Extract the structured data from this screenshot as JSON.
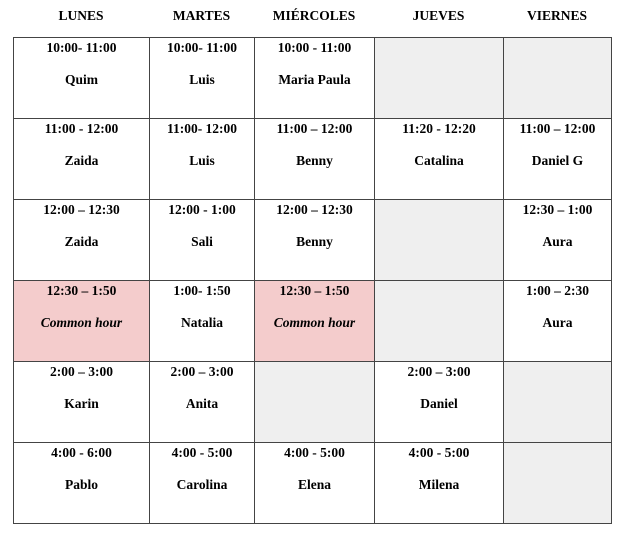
{
  "days": [
    "LUNES",
    "MARTES",
    "MIÉRCOLES",
    "JUEVES",
    "VIERNES"
  ],
  "colors": {
    "common_hour": "#f4cccc",
    "empty": "#efefef",
    "border": "#444444"
  },
  "rows": [
    [
      {
        "time": "10:00- 11:00",
        "name": "Quim"
      },
      {
        "time": "10:00- 11:00",
        "name": "Luis"
      },
      {
        "time": "10:00 - 11:00",
        "name": "Maria Paula"
      },
      {
        "empty": true
      },
      {
        "empty": true
      }
    ],
    [
      {
        "time": "11:00 - 12:00",
        "name": "Zaida"
      },
      {
        "time": "11:00- 12:00",
        "name": "Luis"
      },
      {
        "time": "11:00 – 12:00",
        "name": "Benny"
      },
      {
        "time": "11:20 - 12:20",
        "name": "Catalina"
      },
      {
        "time": "11:00 – 12:00",
        "name": "Daniel G"
      }
    ],
    [
      {
        "time": "12:00 – 12:30",
        "name": "Zaida"
      },
      {
        "time": "12:00 - 1:00",
        "name": "Sali"
      },
      {
        "time": "12:00 – 12:30",
        "name": "Benny"
      },
      {
        "empty": true
      },
      {
        "time": "12:30 – 1:00",
        "name": "Aura"
      }
    ],
    [
      {
        "time": "12:30 – 1:50",
        "name": "Common hour",
        "common": true
      },
      {
        "time": "1:00- 1:50",
        "name": "Natalia"
      },
      {
        "time": "12:30 – 1:50",
        "name": "Common hour",
        "common": true
      },
      {
        "empty": true
      },
      {
        "time": "1:00 – 2:30",
        "name": "Aura"
      }
    ],
    [
      {
        "time": "2:00 – 3:00",
        "name": "Karin"
      },
      {
        "time": "2:00 – 3:00",
        "name": "Anita"
      },
      {
        "empty": true
      },
      {
        "time": "2:00 – 3:00",
        "name": "Daniel"
      },
      {
        "empty": true
      }
    ],
    [
      {
        "time": "4:00 - 6:00",
        "name": "Pablo"
      },
      {
        "time": "4:00 - 5:00",
        "name": "Carolina"
      },
      {
        "time": "4:00 - 5:00",
        "name": "Elena"
      },
      {
        "time": "4:00 - 5:00",
        "name": "Milena"
      },
      {
        "empty": true
      }
    ]
  ]
}
